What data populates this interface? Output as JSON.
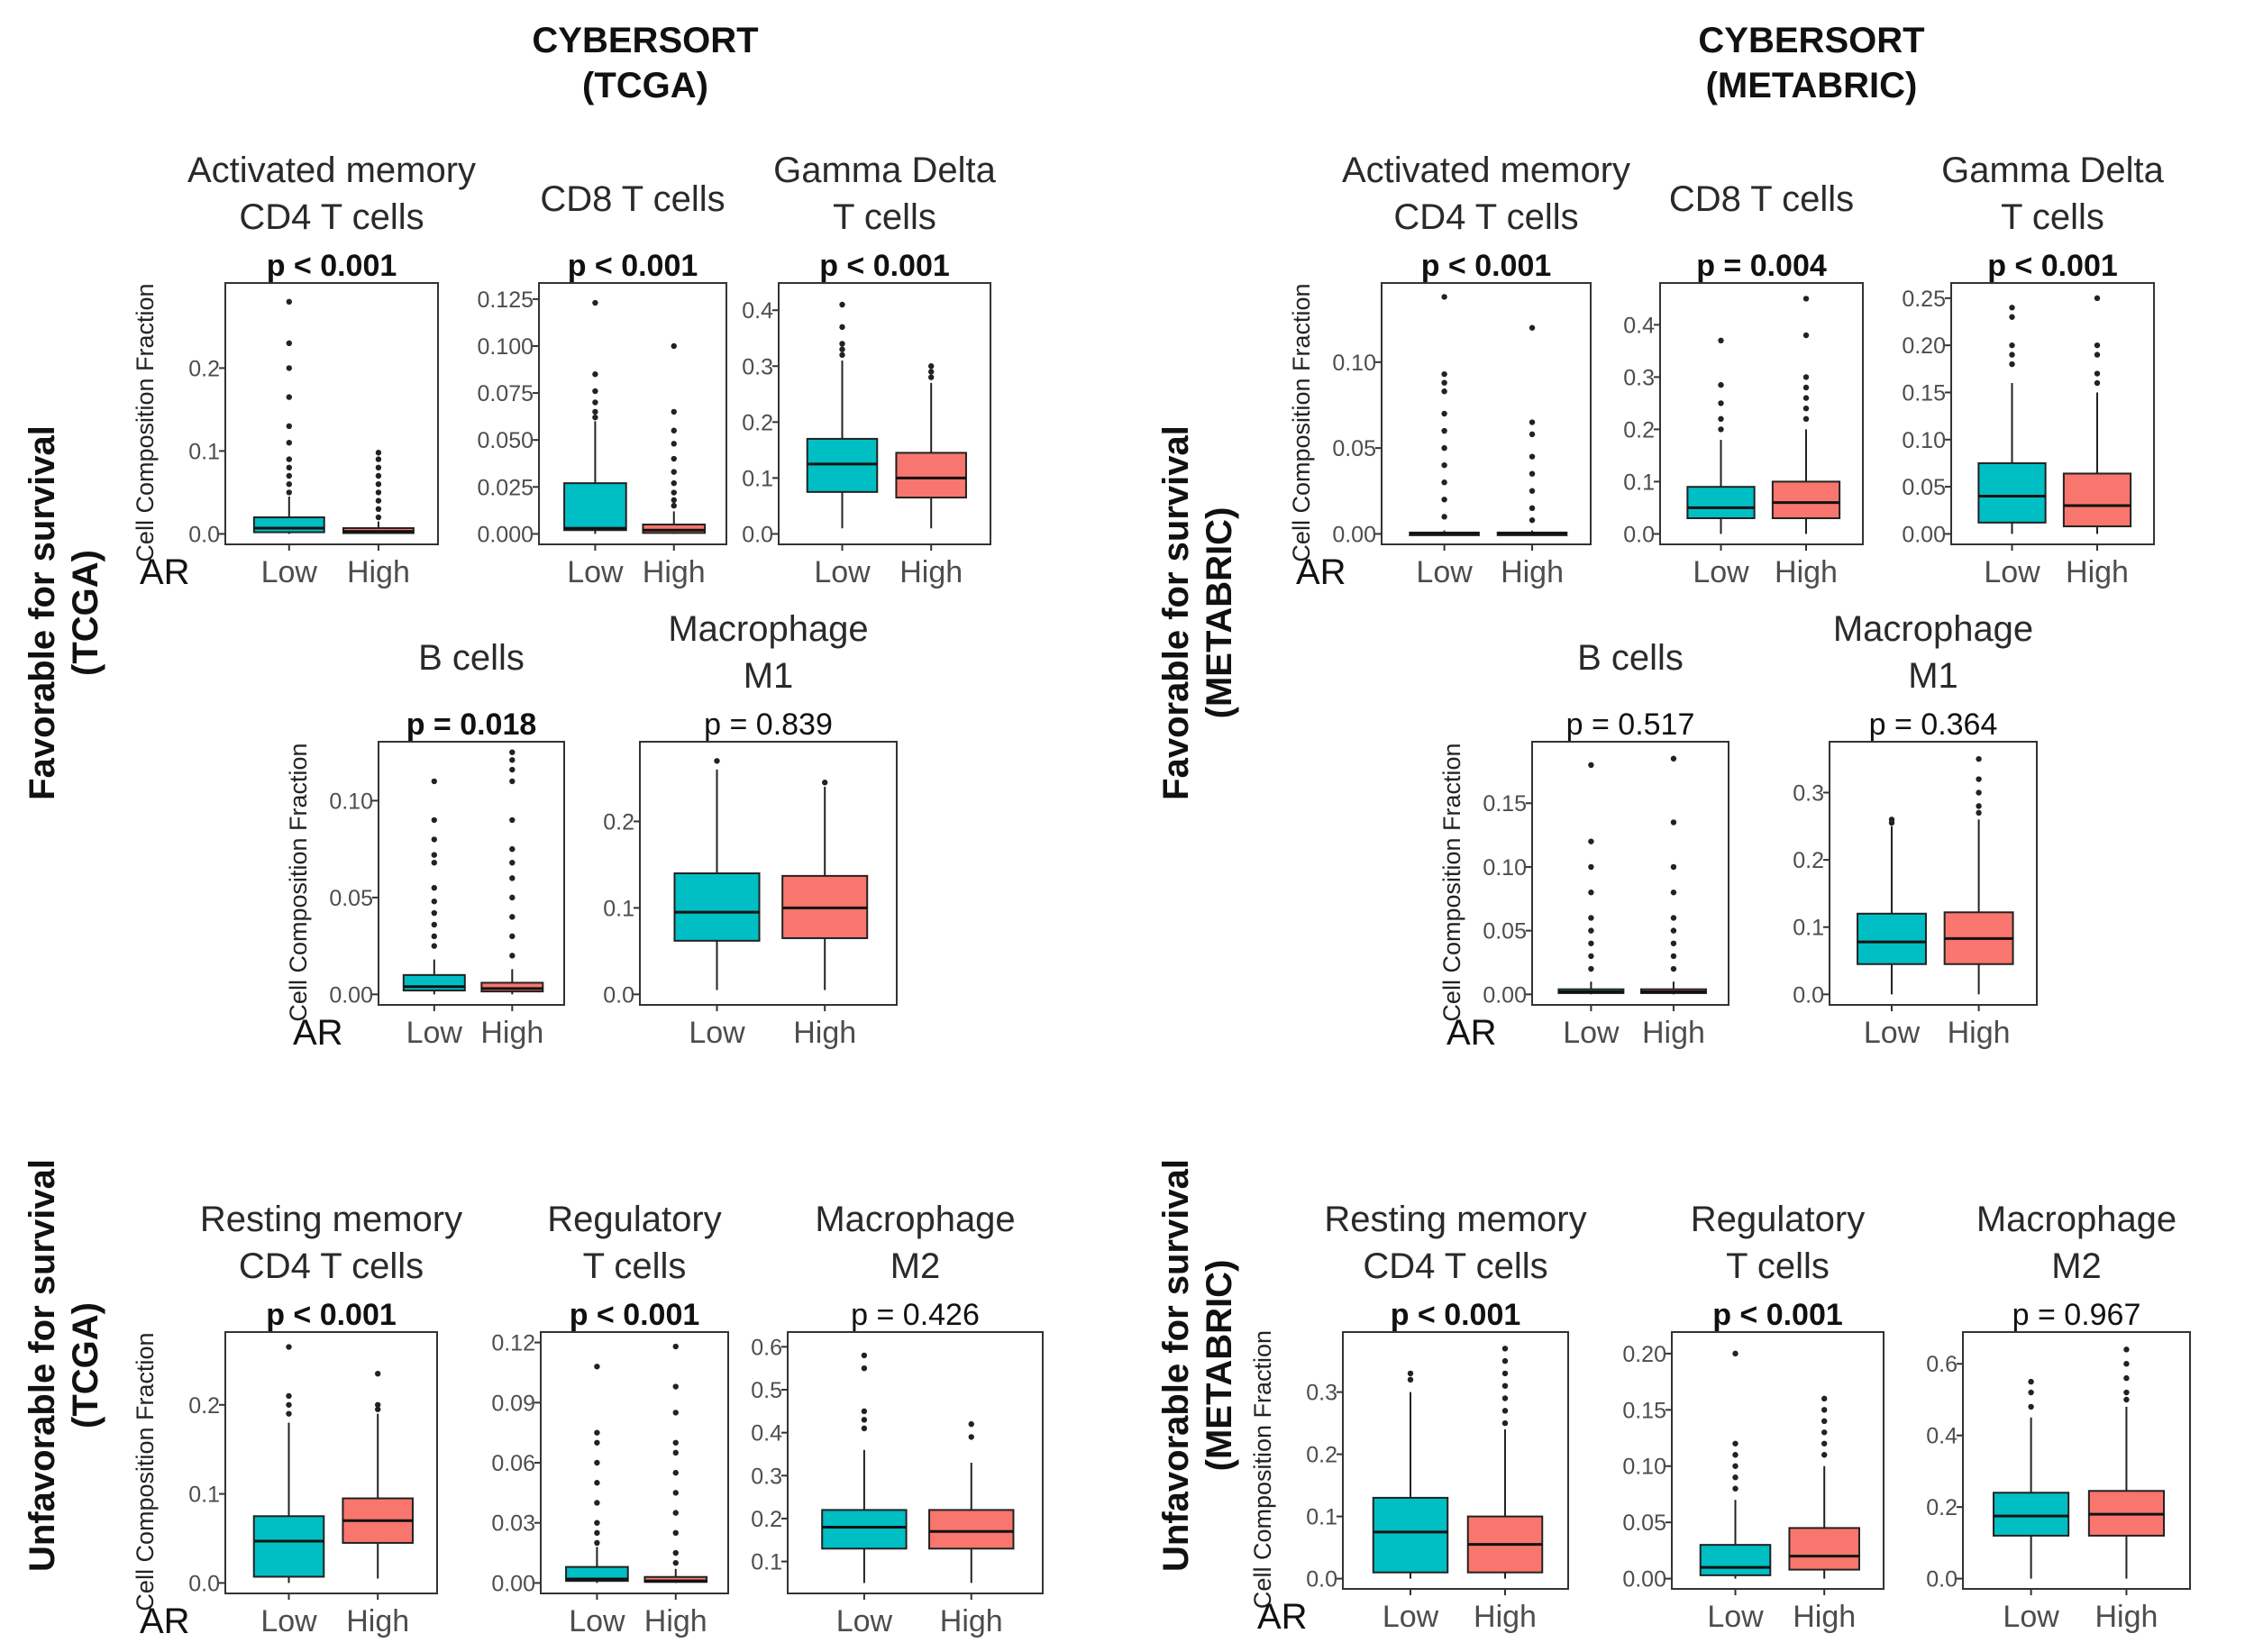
{
  "colors": {
    "low": "#00BFC4",
    "high": "#F8766D",
    "frame": "#333333"
  },
  "column_titles": [
    {
      "line1": "CYBERSORT",
      "line2": "(TCGA)"
    },
    {
      "line1": "CYBERSORT",
      "line2": "(METABRIC)"
    }
  ],
  "row_labels": [
    {
      "line1": "Favorable for survival",
      "line2": "(TCGA)"
    },
    {
      "line1": "Favorable for survival",
      "line2": "(METABRIC)"
    },
    {
      "line1": "Unfavorable for survival",
      "line2": "(TCGA)"
    },
    {
      "line1": "Unfavorable for survival",
      "line2": "(METABRIC)"
    }
  ],
  "ylabel": "Cell Composition Fraction",
  "group_label": "AR",
  "categories": [
    "Low",
    "High"
  ],
  "chart_data": [
    {
      "type": "box",
      "dataset": "TCGA",
      "title": [
        "Activated memory",
        "CD4 T cells"
      ],
      "pvalue": "p < 0.001",
      "significant": true,
      "ylim": [
        0,
        0.29
      ],
      "yticks": [
        "0.0",
        "0.1",
        "0.2"
      ],
      "ytick_values": [
        0,
        0.1,
        0.2
      ],
      "boxes": [
        {
          "category": "Low",
          "whislo": 0,
          "q1": 0.002,
          "med": 0.007,
          "q3": 0.02,
          "whishi": 0.045,
          "outliers": [
            0.28,
            0.23,
            0.2,
            0.165,
            0.13,
            0.11,
            0.09,
            0.08,
            0.07,
            0.06,
            0.05
          ]
        },
        {
          "category": "High",
          "whislo": 0,
          "q1": 0.001,
          "med": 0.003,
          "q3": 0.007,
          "whishi": 0.015,
          "outliers": [
            0.098,
            0.09,
            0.08,
            0.07,
            0.06,
            0.05,
            0.04,
            0.03,
            0.02
          ]
        }
      ]
    },
    {
      "type": "box",
      "dataset": "TCGA",
      "title": [
        "",
        "CD8 T cells"
      ],
      "pvalue": "p < 0.001",
      "significant": true,
      "ylim": [
        0,
        0.128
      ],
      "yticks": [
        "0.000",
        "0.025",
        "0.050",
        "0.075",
        "0.100",
        "0.125"
      ],
      "ytick_values": [
        0,
        0.025,
        0.05,
        0.075,
        0.1,
        0.125
      ],
      "boxes": [
        {
          "category": "Low",
          "whislo": 0,
          "q1": 0.002,
          "med": 0.003,
          "q3": 0.027,
          "whishi": 0.06,
          "outliers": [
            0.123,
            0.085,
            0.076,
            0.07,
            0.065,
            0.062
          ]
        },
        {
          "category": "High",
          "whislo": 0,
          "q1": 0.0005,
          "med": 0.002,
          "q3": 0.005,
          "whishi": 0.012,
          "outliers": [
            0.1,
            0.065,
            0.055,
            0.048,
            0.04,
            0.033,
            0.027,
            0.022,
            0.018,
            0.015
          ]
        }
      ]
    },
    {
      "type": "box",
      "dataset": "TCGA",
      "title": [
        "Gamma Delta",
        "T cells"
      ],
      "pvalue": "p < 0.001",
      "significant": true,
      "ylim": [
        0,
        0.43
      ],
      "yticks": [
        "0.0",
        "0.1",
        "0.2",
        "0.3",
        "0.4"
      ],
      "ytick_values": [
        0,
        0.1,
        0.2,
        0.3,
        0.4
      ],
      "boxes": [
        {
          "category": "Low",
          "whislo": 0.01,
          "q1": 0.075,
          "med": 0.125,
          "q3": 0.17,
          "whishi": 0.31,
          "outliers": [
            0.41,
            0.37,
            0.34,
            0.33,
            0.32
          ]
        },
        {
          "category": "High",
          "whislo": 0.01,
          "q1": 0.065,
          "med": 0.1,
          "q3": 0.145,
          "whishi": 0.27,
          "outliers": [
            0.3,
            0.29,
            0.28
          ]
        }
      ]
    },
    {
      "type": "box",
      "dataset": "TCGA",
      "title": [
        "",
        "B cells"
      ],
      "pvalue": "p = 0.018",
      "significant": true,
      "ylim": [
        0,
        0.125
      ],
      "yticks": [
        "0.00",
        "0.05",
        "0.10"
      ],
      "ytick_values": [
        0,
        0.05,
        0.1
      ],
      "boxes": [
        {
          "category": "Low",
          "whislo": 0,
          "q1": 0.002,
          "med": 0.004,
          "q3": 0.01,
          "whishi": 0.018,
          "outliers": [
            0.11,
            0.09,
            0.08,
            0.072,
            0.068,
            0.055,
            0.048,
            0.042,
            0.036,
            0.03,
            0.025
          ]
        },
        {
          "category": "High",
          "whislo": 0,
          "q1": 0.0015,
          "med": 0.003,
          "q3": 0.006,
          "whishi": 0.013,
          "outliers": [
            0.125,
            0.121,
            0.116,
            0.11,
            0.09,
            0.075,
            0.068,
            0.06,
            0.05,
            0.04,
            0.03,
            0.02
          ]
        }
      ]
    },
    {
      "type": "box",
      "dataset": "TCGA",
      "title": [
        "Macrophage",
        "M1"
      ],
      "pvalue": "p = 0.839",
      "significant": false,
      "ylim": [
        0,
        0.28
      ],
      "yticks": [
        "0.0",
        "0.1",
        "0.2"
      ],
      "ytick_values": [
        0,
        0.1,
        0.2
      ],
      "boxes": [
        {
          "category": "Low",
          "whislo": 0.005,
          "q1": 0.062,
          "med": 0.095,
          "q3": 0.14,
          "whishi": 0.26,
          "outliers": [
            0.27
          ]
        },
        {
          "category": "High",
          "whislo": 0.005,
          "q1": 0.065,
          "med": 0.1,
          "q3": 0.137,
          "whishi": 0.24,
          "outliers": [
            0.245
          ]
        }
      ]
    },
    {
      "type": "box",
      "dataset": "METABRIC",
      "title": [
        "Activated memory",
        "CD4 T cells"
      ],
      "pvalue": "p < 0.001",
      "significant": true,
      "ylim": [
        0,
        0.14
      ],
      "yticks": [
        "0.00",
        "0.05",
        "0.10"
      ],
      "ytick_values": [
        0,
        0.05,
        0.1
      ],
      "boxes": [
        {
          "category": "Low",
          "whislo": 0,
          "q1": 0,
          "med": 0.0003,
          "q3": 0.0008,
          "whishi": 0.002,
          "outliers": [
            0.138,
            0.093,
            0.088,
            0.083,
            0.07,
            0.06,
            0.05,
            0.04,
            0.03,
            0.02,
            0.01
          ]
        },
        {
          "category": "High",
          "whislo": 0,
          "q1": 0,
          "med": 0.0003,
          "q3": 0.0008,
          "whishi": 0.002,
          "outliers": [
            0.12,
            0.065,
            0.058,
            0.045,
            0.035,
            0.025,
            0.015,
            0.008
          ]
        }
      ]
    },
    {
      "type": "box",
      "dataset": "METABRIC",
      "title": [
        "",
        "CD8 T cells"
      ],
      "pvalue": "p = 0.004",
      "significant": true,
      "ylim": [
        0,
        0.46
      ],
      "yticks": [
        "0.0",
        "0.1",
        "0.2",
        "0.3",
        "0.4"
      ],
      "ytick_values": [
        0,
        0.1,
        0.2,
        0.3,
        0.4
      ],
      "boxes": [
        {
          "category": "Low",
          "whislo": 0,
          "q1": 0.03,
          "med": 0.05,
          "q3": 0.09,
          "whishi": 0.18,
          "outliers": [
            0.37,
            0.285,
            0.25,
            0.22,
            0.2
          ]
        },
        {
          "category": "High",
          "whislo": 0,
          "q1": 0.03,
          "med": 0.06,
          "q3": 0.1,
          "whishi": 0.2,
          "outliers": [
            0.45,
            0.38,
            0.3,
            0.28,
            0.26,
            0.24,
            0.22
          ]
        }
      ]
    },
    {
      "type": "box",
      "dataset": "METABRIC",
      "title": [
        "Gamma Delta",
        "T cells"
      ],
      "pvalue": "p < 0.001",
      "significant": true,
      "ylim": [
        0,
        0.255
      ],
      "yticks": [
        "0.00",
        "0.05",
        "0.10",
        "0.15",
        "0.20",
        "0.25"
      ],
      "ytick_values": [
        0,
        0.05,
        0.1,
        0.15,
        0.2,
        0.25
      ],
      "boxes": [
        {
          "category": "Low",
          "whislo": 0,
          "q1": 0.012,
          "med": 0.04,
          "q3": 0.075,
          "whishi": 0.16,
          "outliers": [
            0.24,
            0.23,
            0.2,
            0.19,
            0.18
          ]
        },
        {
          "category": "High",
          "whislo": 0,
          "q1": 0.008,
          "med": 0.03,
          "q3": 0.064,
          "whishi": 0.15,
          "outliers": [
            0.25,
            0.2,
            0.19,
            0.17,
            0.16
          ]
        }
      ]
    },
    {
      "type": "box",
      "dataset": "METABRIC",
      "title": [
        "",
        "B cells"
      ],
      "pvalue": "p = 0.517",
      "significant": false,
      "ylim": [
        0,
        0.19
      ],
      "yticks": [
        "0.00",
        "0.05",
        "0.10",
        "0.15"
      ],
      "ytick_values": [
        0,
        0.05,
        0.1,
        0.15
      ],
      "boxes": [
        {
          "category": "Low",
          "whislo": 0,
          "q1": 0.001,
          "med": 0.002,
          "q3": 0.004,
          "whishi": 0.01,
          "outliers": [
            0.18,
            0.12,
            0.1,
            0.08,
            0.06,
            0.05,
            0.04,
            0.03,
            0.02
          ]
        },
        {
          "category": "High",
          "whislo": 0,
          "q1": 0.001,
          "med": 0.002,
          "q3": 0.004,
          "whishi": 0.01,
          "outliers": [
            0.185,
            0.135,
            0.1,
            0.08,
            0.06,
            0.05,
            0.04,
            0.03,
            0.02
          ]
        }
      ]
    },
    {
      "type": "box",
      "dataset": "METABRIC",
      "title": [
        "Macrophage",
        "M1"
      ],
      "pvalue": "p = 0.364",
      "significant": false,
      "ylim": [
        0,
        0.36
      ],
      "yticks": [
        "0.0",
        "0.1",
        "0.2",
        "0.3"
      ],
      "ytick_values": [
        0,
        0.1,
        0.2,
        0.3
      ],
      "boxes": [
        {
          "category": "Low",
          "whislo": 0,
          "q1": 0.045,
          "med": 0.078,
          "q3": 0.12,
          "whishi": 0.25,
          "outliers": [
            0.26,
            0.255
          ]
        },
        {
          "category": "High",
          "whislo": 0,
          "q1": 0.045,
          "med": 0.083,
          "q3": 0.122,
          "whishi": 0.26,
          "outliers": [
            0.35,
            0.32,
            0.3,
            0.28,
            0.27
          ]
        }
      ]
    },
    {
      "type": "box",
      "dataset": "TCGA",
      "title": [
        "Resting memory",
        "CD4 T cells"
      ],
      "pvalue": "p < 0.001",
      "significant": true,
      "ylim": [
        0,
        0.27
      ],
      "yticks": [
        "0.0",
        "0.1",
        "0.2"
      ],
      "ytick_values": [
        0,
        0.1,
        0.2
      ],
      "boxes": [
        {
          "category": "Low",
          "whislo": 0,
          "q1": 0.007,
          "med": 0.047,
          "q3": 0.075,
          "whishi": 0.18,
          "outliers": [
            0.265,
            0.21,
            0.2,
            0.19
          ]
        },
        {
          "category": "High",
          "whislo": 0.005,
          "q1": 0.045,
          "med": 0.07,
          "q3": 0.095,
          "whishi": 0.19,
          "outliers": [
            0.235,
            0.2,
            0.195
          ]
        }
      ]
    },
    {
      "type": "box",
      "dataset": "TCGA",
      "title": [
        "Regulatory",
        "T cells"
      ],
      "pvalue": "p < 0.001",
      "significant": true,
      "ylim": [
        0,
        0.12
      ],
      "yticks": [
        "0.00",
        "0.03",
        "0.06",
        "0.09",
        "0.12"
      ],
      "ytick_values": [
        0,
        0.03,
        0.06,
        0.09,
        0.12
      ],
      "boxes": [
        {
          "category": "Low",
          "whislo": 0,
          "q1": 0.001,
          "med": 0.002,
          "q3": 0.008,
          "whishi": 0.018,
          "outliers": [
            0.108,
            0.075,
            0.07,
            0.06,
            0.05,
            0.04,
            0.03,
            0.025,
            0.02
          ]
        },
        {
          "category": "High",
          "whislo": 0,
          "q1": 0.0005,
          "med": 0.001,
          "q3": 0.003,
          "whishi": 0.007,
          "outliers": [
            0.118,
            0.098,
            0.085,
            0.07,
            0.065,
            0.055,
            0.045,
            0.035,
            0.025,
            0.015,
            0.01
          ]
        }
      ]
    },
    {
      "type": "box",
      "dataset": "TCGA",
      "title": [
        "Macrophage",
        "M2"
      ],
      "pvalue": "p = 0.426",
      "significant": false,
      "ylim": [
        0.05,
        0.61
      ],
      "yticks": [
        "0.1",
        "0.2",
        "0.3",
        "0.4",
        "0.5",
        "0.6"
      ],
      "ytick_values": [
        0.1,
        0.2,
        0.3,
        0.4,
        0.5,
        0.6
      ],
      "boxes": [
        {
          "category": "Low",
          "whislo": 0.05,
          "q1": 0.13,
          "med": 0.18,
          "q3": 0.22,
          "whishi": 0.36,
          "outliers": [
            0.58,
            0.55,
            0.45,
            0.43,
            0.41
          ]
        },
        {
          "category": "High",
          "whislo": 0.05,
          "q1": 0.13,
          "med": 0.17,
          "q3": 0.22,
          "whishi": 0.33,
          "outliers": [
            0.42,
            0.39
          ]
        }
      ]
    },
    {
      "type": "box",
      "dataset": "METABRIC",
      "title": [
        "Resting memory",
        "CD4 T cells"
      ],
      "pvalue": "p < 0.001",
      "significant": true,
      "ylim": [
        0,
        0.38
      ],
      "yticks": [
        "0.0",
        "0.1",
        "0.2",
        "0.3"
      ],
      "ytick_values": [
        0,
        0.1,
        0.2,
        0.3
      ],
      "boxes": [
        {
          "category": "Low",
          "whislo": 0,
          "q1": 0.01,
          "med": 0.075,
          "q3": 0.13,
          "whishi": 0.3,
          "outliers": [
            0.33,
            0.32
          ]
        },
        {
          "category": "High",
          "whislo": 0,
          "q1": 0.01,
          "med": 0.055,
          "q3": 0.1,
          "whishi": 0.24,
          "outliers": [
            0.37,
            0.35,
            0.33,
            0.31,
            0.29,
            0.27,
            0.25
          ]
        }
      ]
    },
    {
      "type": "box",
      "dataset": "METABRIC",
      "title": [
        "Regulatory",
        "T cells"
      ],
      "pvalue": "p < 0.001",
      "significant": true,
      "ylim": [
        0,
        0.21
      ],
      "yticks": [
        "0.00",
        "0.05",
        "0.10",
        "0.15",
        "0.20"
      ],
      "ytick_values": [
        0,
        0.05,
        0.1,
        0.15,
        0.2
      ],
      "boxes": [
        {
          "category": "Low",
          "whislo": 0,
          "q1": 0.003,
          "med": 0.01,
          "q3": 0.03,
          "whishi": 0.07,
          "outliers": [
            0.2,
            0.12,
            0.11,
            0.1,
            0.09,
            0.08
          ]
        },
        {
          "category": "High",
          "whislo": 0,
          "q1": 0.008,
          "med": 0.02,
          "q3": 0.045,
          "whishi": 0.1,
          "outliers": [
            0.16,
            0.15,
            0.14,
            0.13,
            0.12,
            0.11
          ]
        }
      ]
    },
    {
      "type": "box",
      "dataset": "METABRIC",
      "title": [
        "Macrophage",
        "M2"
      ],
      "pvalue": "p = 0.967",
      "significant": false,
      "ylim": [
        0,
        0.66
      ],
      "yticks": [
        "0.0",
        "0.2",
        "0.4",
        "0.6"
      ],
      "ytick_values": [
        0,
        0.2,
        0.4,
        0.6
      ],
      "boxes": [
        {
          "category": "Low",
          "whislo": 0,
          "q1": 0.12,
          "med": 0.175,
          "q3": 0.24,
          "whishi": 0.45,
          "outliers": [
            0.55,
            0.52,
            0.48
          ]
        },
        {
          "category": "High",
          "whislo": 0,
          "q1": 0.12,
          "med": 0.18,
          "q3": 0.245,
          "whishi": 0.48,
          "outliers": [
            0.64,
            0.6,
            0.56,
            0.52,
            0.5
          ]
        }
      ]
    }
  ]
}
